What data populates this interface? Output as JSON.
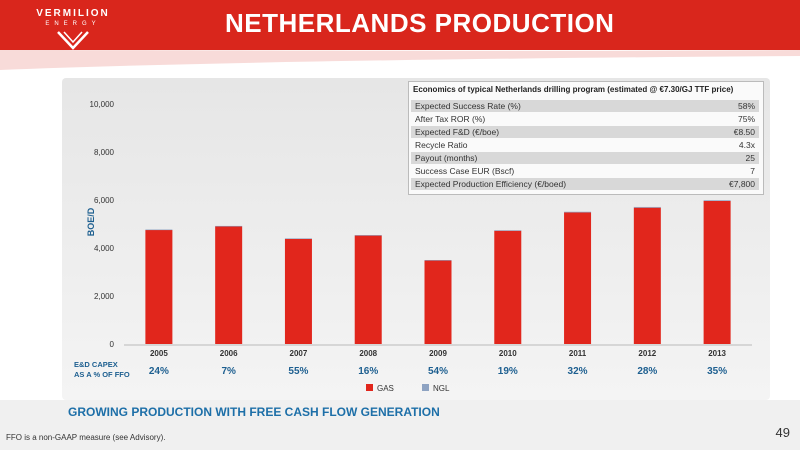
{
  "header": {
    "title": "NETHERLANDS PRODUCTION",
    "logo_name": "VERMILION",
    "logo_sub": "ENERGY"
  },
  "economics": {
    "title": "Economics of typical Netherlands drilling program (estimated @ €7.30/GJ TTF price)",
    "rows": [
      {
        "label": "Expected Success Rate (%)",
        "value": "58%"
      },
      {
        "label": "After Tax ROR (%)",
        "value": "75%"
      },
      {
        "label": "Expected F&D (€/boe)",
        "value": "€8.50"
      },
      {
        "label": "Recycle Ratio",
        "value": "4.3x"
      },
      {
        "label": "Payout (months)",
        "value": "25"
      },
      {
        "label": "Success Case EUR (Bscf)",
        "value": "7"
      },
      {
        "label": "Expected Production Efficiency (€/boed)",
        "value": "€7,800"
      }
    ]
  },
  "capex": {
    "label_line1": "E&D CAPEX",
    "label_line2": "AS A % OF FFO",
    "values": [
      "24%",
      "7%",
      "55%",
      "16%",
      "54%",
      "19%",
      "32%",
      "28%",
      "35%"
    ]
  },
  "chart_data": {
    "type": "bar",
    "stacked": true,
    "categories": [
      "2005",
      "2006",
      "2007",
      "2008",
      "2009",
      "2010",
      "2011",
      "2012",
      "2013"
    ],
    "series": [
      {
        "name": "GAS",
        "color": "#e1261c",
        "values": [
          4750,
          4900,
          4380,
          4520,
          3480,
          4720,
          5480,
          5680,
          5960
        ]
      },
      {
        "name": "NGL",
        "color": "#8ea3c2",
        "values": [
          20,
          20,
          20,
          20,
          20,
          20,
          30,
          30,
          30
        ]
      }
    ],
    "ylabel": "BOE/D",
    "ylim": [
      0,
      10000
    ],
    "yticks": [
      "0",
      "2,000",
      "4,000",
      "6,000",
      "8,000",
      "10,000"
    ],
    "ytick_values": [
      0,
      2000,
      4000,
      6000,
      8000,
      10000
    ],
    "legend_position": "bottom-center",
    "grid": false
  },
  "footer": {
    "tagline": "GROWING PRODUCTION WITH FREE CASH FLOW GENERATION",
    "footnote": "FFO is a non-GAAP measure (see Advisory).",
    "page": "49"
  }
}
